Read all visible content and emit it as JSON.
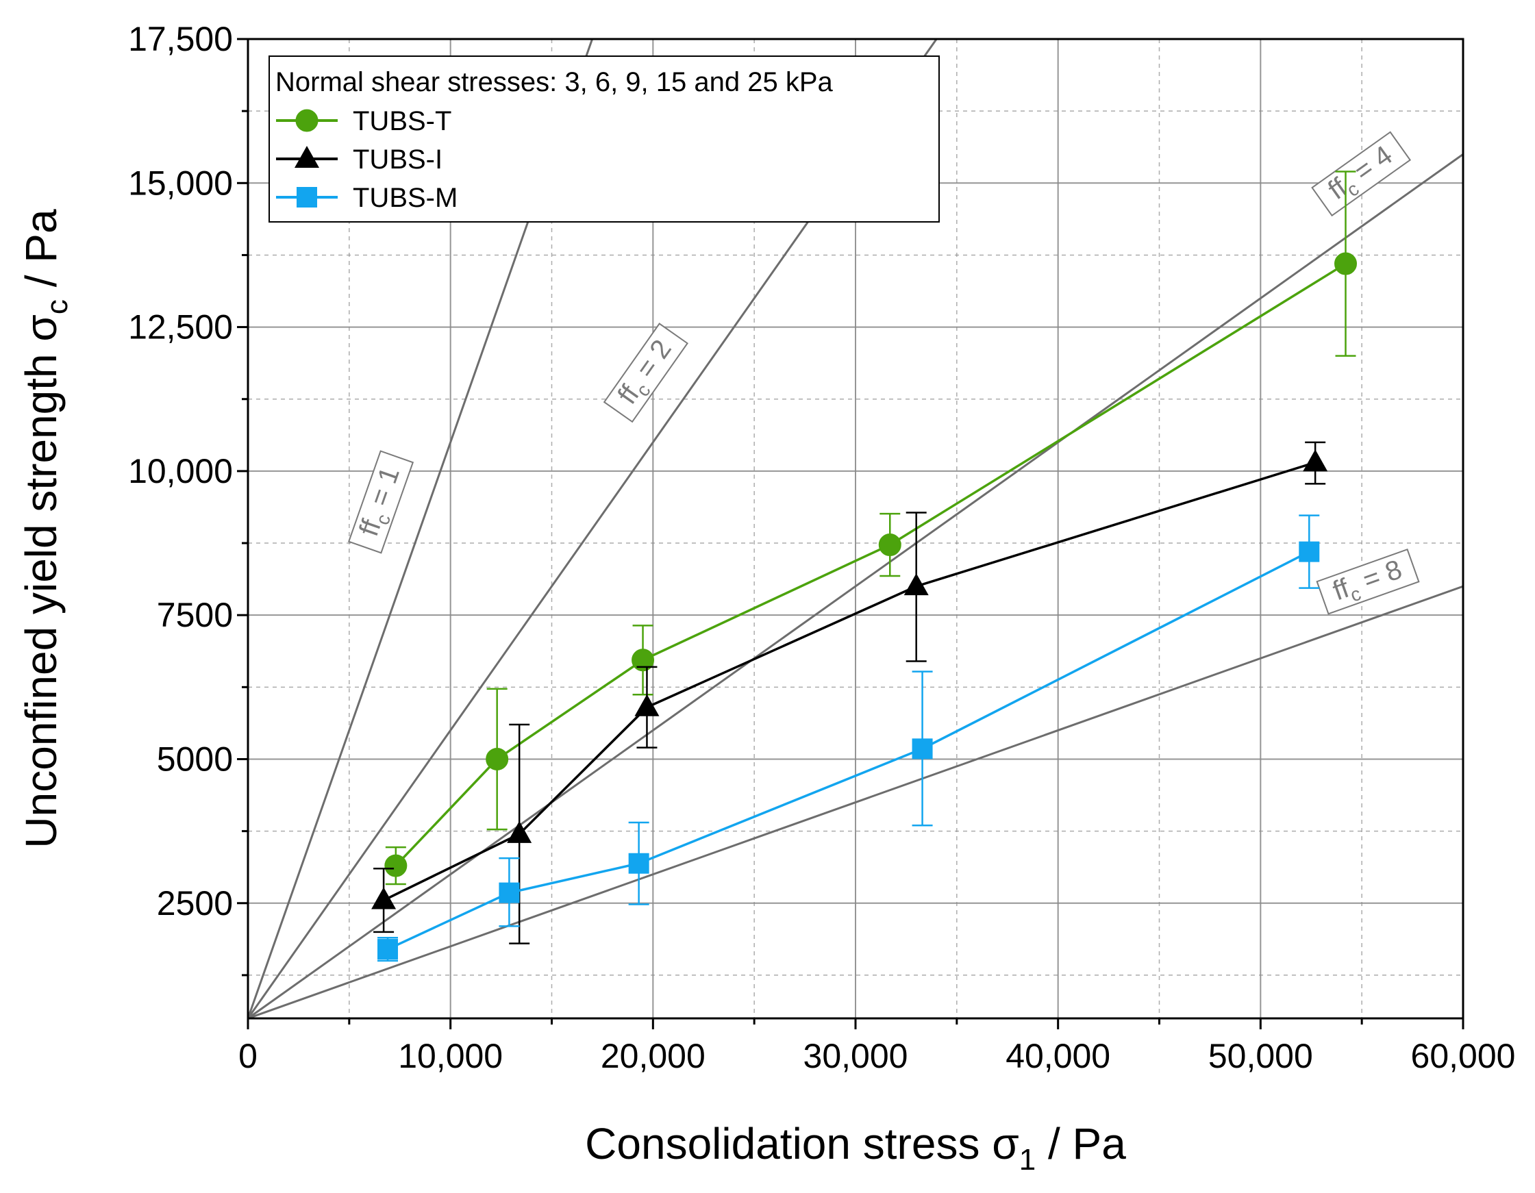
{
  "chart_data": {
    "type": "line",
    "xlabel": "Consolidation stress σ",
    "xlabel_sub": "1",
    "xlabel_unit": " / Pa",
    "ylabel": "Unconfined yield strength σ",
    "ylabel_sub": "c",
    "ylabel_unit": " / Pa",
    "xlim": [
      0,
      60000
    ],
    "ylim": [
      500,
      17500
    ],
    "x_ticks": [
      {
        "value": 0,
        "label": "0"
      },
      {
        "value": 10000,
        "label": "10,000"
      },
      {
        "value": 20000,
        "label": "20,000"
      },
      {
        "value": 30000,
        "label": "30,000"
      },
      {
        "value": 40000,
        "label": "40,000"
      },
      {
        "value": 50000,
        "label": "50,000"
      },
      {
        "value": 60000,
        "label": "60,000"
      }
    ],
    "y_ticks": [
      {
        "value": 2500,
        "label": "2500"
      },
      {
        "value": 5000,
        "label": "5000"
      },
      {
        "value": 7500,
        "label": "7500"
      },
      {
        "value": 10000,
        "label": "10,000"
      },
      {
        "value": 12500,
        "label": "12,500"
      },
      {
        "value": 15000,
        "label": "15,000"
      },
      {
        "value": 17500,
        "label": "17,500"
      }
    ],
    "grid": true,
    "legend": {
      "title": "Normal shear stresses: 3, 6, 9, 15 and 25 kPa",
      "position": "top-left"
    },
    "series": [
      {
        "name": "TUBS-T",
        "color": "#4ca30d",
        "marker": "circle",
        "points": [
          {
            "x": 7300,
            "y": 3150,
            "err_low": 2830,
            "err_high": 3470
          },
          {
            "x": 12300,
            "y": 5000,
            "err_low": 3780,
            "err_high": 6220
          },
          {
            "x": 19500,
            "y": 6720,
            "err_low": 6120,
            "err_high": 7320
          },
          {
            "x": 31700,
            "y": 8720,
            "err_low": 8180,
            "err_high": 9260
          },
          {
            "x": 54200,
            "y": 13600,
            "err_low": 12000,
            "err_high": 15200
          }
        ]
      },
      {
        "name": "TUBS-I",
        "color": "#000000",
        "marker": "triangle",
        "points": [
          {
            "x": 6700,
            "y": 2550,
            "err_low": 2000,
            "err_high": 3100
          },
          {
            "x": 13400,
            "y": 3700,
            "err_low": 1800,
            "err_high": 5600
          },
          {
            "x": 19700,
            "y": 5900,
            "err_low": 5200,
            "err_high": 6600
          },
          {
            "x": 33000,
            "y": 8000,
            "err_low": 6700,
            "err_high": 9280
          },
          {
            "x": 52700,
            "y": 10150,
            "err_low": 9780,
            "err_high": 10500
          }
        ]
      },
      {
        "name": "TUBS-M",
        "color": "#12a5ef",
        "marker": "square",
        "points": [
          {
            "x": 6900,
            "y": 1700,
            "err_low": 1500,
            "err_high": 1900
          },
          {
            "x": 12900,
            "y": 2680,
            "err_low": 2100,
            "err_high": 3280
          },
          {
            "x": 19300,
            "y": 3190,
            "err_low": 2480,
            "err_high": 3900
          },
          {
            "x": 33300,
            "y": 5180,
            "err_low": 3850,
            "err_high": 6520
          },
          {
            "x": 52400,
            "y": 8600,
            "err_low": 7970,
            "err_high": 9230
          }
        ]
      }
    ],
    "flow_lines": [
      {
        "ffc": 1,
        "label_main": "ff",
        "label_sub": "c",
        "label_tail": " = 1"
      },
      {
        "ffc": 2,
        "label_main": "ff",
        "label_sub": "c",
        "label_tail": " = 2"
      },
      {
        "ffc": 4,
        "label_main": "ff",
        "label_sub": "c",
        "label_tail": " = 4"
      },
      {
        "ffc": 8,
        "label_main": "ff",
        "label_sub": "c",
        "label_tail": " = 8"
      }
    ],
    "flow_line_intercept_y": 500,
    "flow_line_color": "#6d6d6d",
    "grid_color": "#8a8a8a"
  }
}
